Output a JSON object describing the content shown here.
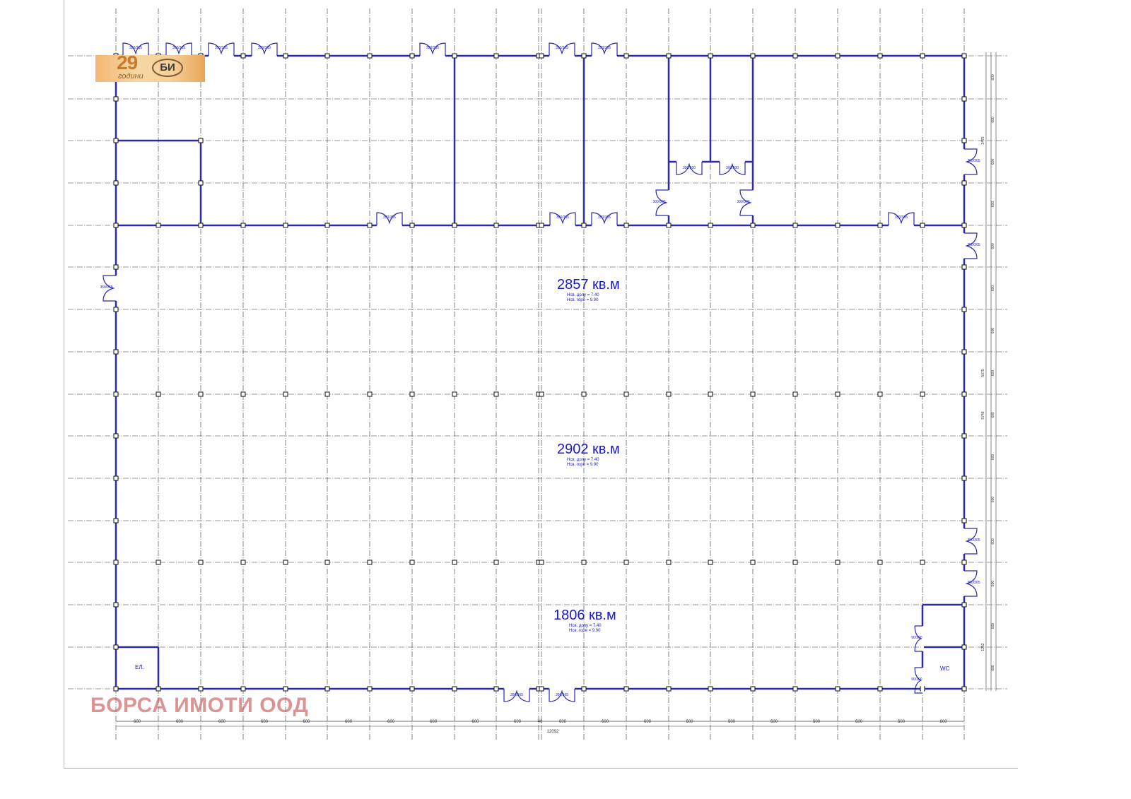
{
  "logo": {
    "number": "29",
    "word": "години",
    "monogram": "БИ"
  },
  "watermark": "БОРСА ИМОТИ ООД",
  "areas": [
    {
      "label": "2857 кв.м",
      "h_low": "Нсв. долу = 7.40",
      "h_high": "Нсв. горе = 9.90"
    },
    {
      "label": "2902 кв.м",
      "h_low": "Нсв. долу = 7.40",
      "h_high": "Нсв. горе = 9.90"
    },
    {
      "label": "1806 кв.м",
      "h_low": "Нсв. долу = 7.40",
      "h_high": "Нсв. горе = 9.90"
    }
  ],
  "rooms": {
    "elevator": "ЕЛ.",
    "wc": "WC"
  },
  "dimensions": {
    "bay": "600",
    "offset": "46",
    "total_width": "12092",
    "right_totals": [
      "3475",
      "5075",
      "5748",
      "1252"
    ],
    "column_offsets": [
      "46",
      "30",
      "45"
    ]
  },
  "door_labels": {
    "big": "350/365",
    "small": "90/200",
    "inner": "300/300"
  },
  "colors": {
    "wall": "#2a2aaa",
    "grid": "#333333",
    "text": "#1a1ad0",
    "watermark": "#c85a5a"
  }
}
